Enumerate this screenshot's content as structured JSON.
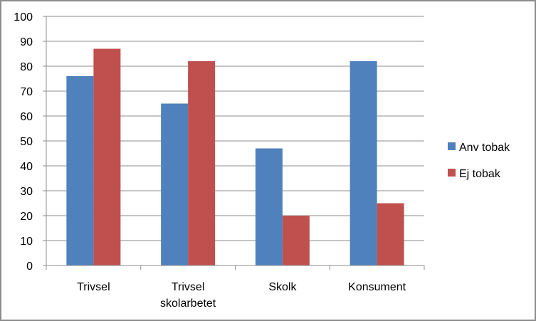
{
  "chart_data": {
    "type": "bar",
    "categories": [
      [
        "Trivsel"
      ],
      [
        "Trivsel",
        "skolarbetet"
      ],
      [
        "Skolk"
      ],
      [
        "Konsument"
      ]
    ],
    "series": [
      {
        "name": "Anv tobak",
        "color": "#4f81bd",
        "values": [
          76,
          65,
          47,
          82
        ]
      },
      {
        "name": "Ej tobak",
        "color": "#c0504d",
        "values": [
          87,
          82,
          20,
          25
        ]
      }
    ],
    "ylim": [
      0,
      100
    ],
    "yticks": [
      0,
      10,
      20,
      30,
      40,
      50,
      60,
      70,
      80,
      90,
      100
    ],
    "grid": true,
    "legend_position": "right"
  }
}
